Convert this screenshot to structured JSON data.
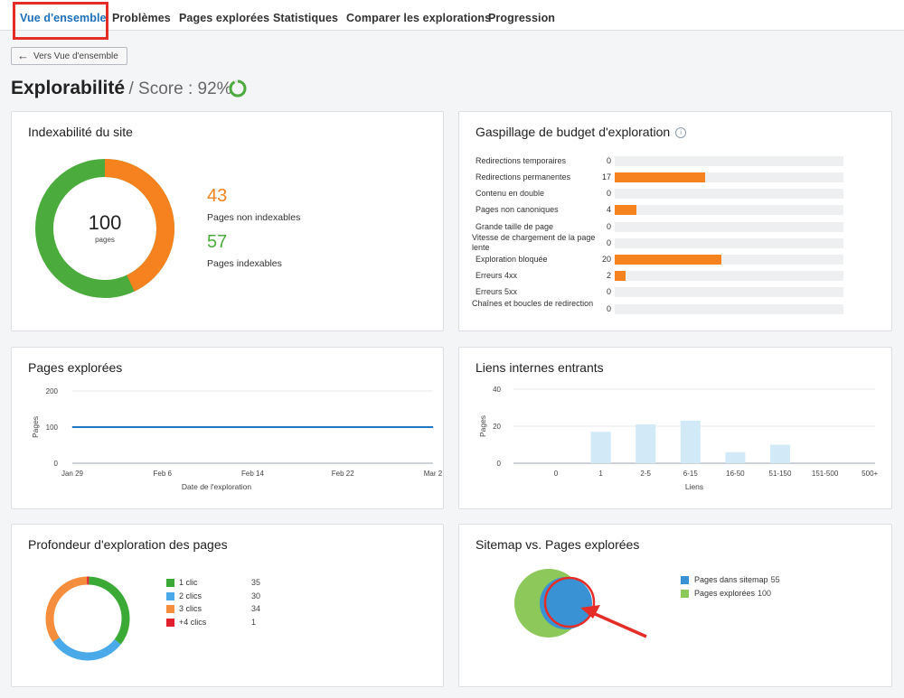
{
  "tabs": [
    "Vue d'ensemble",
    "Problèmes",
    "Pages explorées",
    "Statistiques",
    "Comparer les explorations",
    "Progression"
  ],
  "back_button": "Vers Vue d'ensemble",
  "title": {
    "main": "Explorabilité",
    "score": "/ Score : 92%",
    "score_value": 92
  },
  "indexability": {
    "title": "Indexabilité du site",
    "total": "100",
    "total_label": "pages",
    "non_indexable": {
      "value": "43",
      "label": "Pages non indexables",
      "color": "#f5821f"
    },
    "indexable": {
      "value": "57",
      "label": "Pages indexables",
      "color": "#4bab3d"
    }
  },
  "budget": {
    "title": "Gaspillage de budget d'exploration",
    "max": 43,
    "rows": [
      {
        "label": "Redirections temporaires",
        "value": "0",
        "n": 0
      },
      {
        "label": "Redirections permanentes",
        "value": "17",
        "n": 17
      },
      {
        "label": "Contenu en double",
        "value": "0",
        "n": 0
      },
      {
        "label": "Pages non canoniques",
        "value": "4",
        "n": 4
      },
      {
        "label": "Grande taille de page",
        "value": "0",
        "n": 0
      },
      {
        "label": "Vitesse de chargement de la page lente",
        "value": "0",
        "n": 0
      },
      {
        "label": "Exploration bloquée",
        "value": "20",
        "n": 20
      },
      {
        "label": "Erreurs 4xx",
        "value": "2",
        "n": 2
      },
      {
        "label": "Erreurs 5xx",
        "value": "0",
        "n": 0
      },
      {
        "label": "Chaînes et boucles de redirection",
        "value": "0",
        "n": 0
      }
    ]
  },
  "crawled_pages": {
    "title": "Pages explorées",
    "chart_data": {
      "type": "line",
      "xlabel": "Date de l'exploration",
      "ylabel": "Pages",
      "ylim": [
        0,
        200
      ],
      "yticks": [
        "0",
        "100",
        "200"
      ],
      "xticks": [
        "Jan 29",
        "Feb 6",
        "Feb 14",
        "Feb 22",
        "Mar 2"
      ],
      "series": [
        {
          "values": [
            100,
            100,
            100,
            100,
            100
          ]
        }
      ]
    }
  },
  "inlinks": {
    "title": "Liens internes entrants",
    "chart_data": {
      "type": "bar",
      "xlabel": "Liens",
      "ylabel": "Pages",
      "ylim": [
        0,
        40
      ],
      "yticks": [
        "0",
        "20",
        "40"
      ],
      "categories": [
        "0",
        "1",
        "2-5",
        "6-15",
        "16-50",
        "51-150",
        "151-500",
        "500+"
      ],
      "values": [
        0,
        17,
        21,
        23,
        6,
        10,
        0,
        0
      ]
    }
  },
  "depth": {
    "title": "Profondeur d'exploration des pages",
    "chart_data": {
      "type": "pie",
      "categories": [
        "1 clic",
        "2 clics",
        "3 clics",
        "+4 clics"
      ],
      "values": [
        35,
        30,
        34,
        1
      ],
      "colors": [
        "#3aa935",
        "#4aa9e8",
        "#f58e3c",
        "#e2212e"
      ]
    },
    "legend": [
      {
        "label": "1 clic",
        "value": "35",
        "color": "#3aa935"
      },
      {
        "label": "2 clics",
        "value": "30",
        "color": "#4aa9e8"
      },
      {
        "label": "3 clics",
        "value": "34",
        "color": "#f58e3c"
      },
      {
        "label": "+4 clics",
        "value": "1",
        "color": "#e2212e"
      }
    ]
  },
  "sitemap": {
    "title": "Sitemap vs. Pages explorées",
    "legend": [
      {
        "label": "Pages dans sitemap",
        "value": "55",
        "color": "#3892d4"
      },
      {
        "label": "Pages explorées",
        "value": "100",
        "color": "#8dc85a"
      }
    ]
  }
}
